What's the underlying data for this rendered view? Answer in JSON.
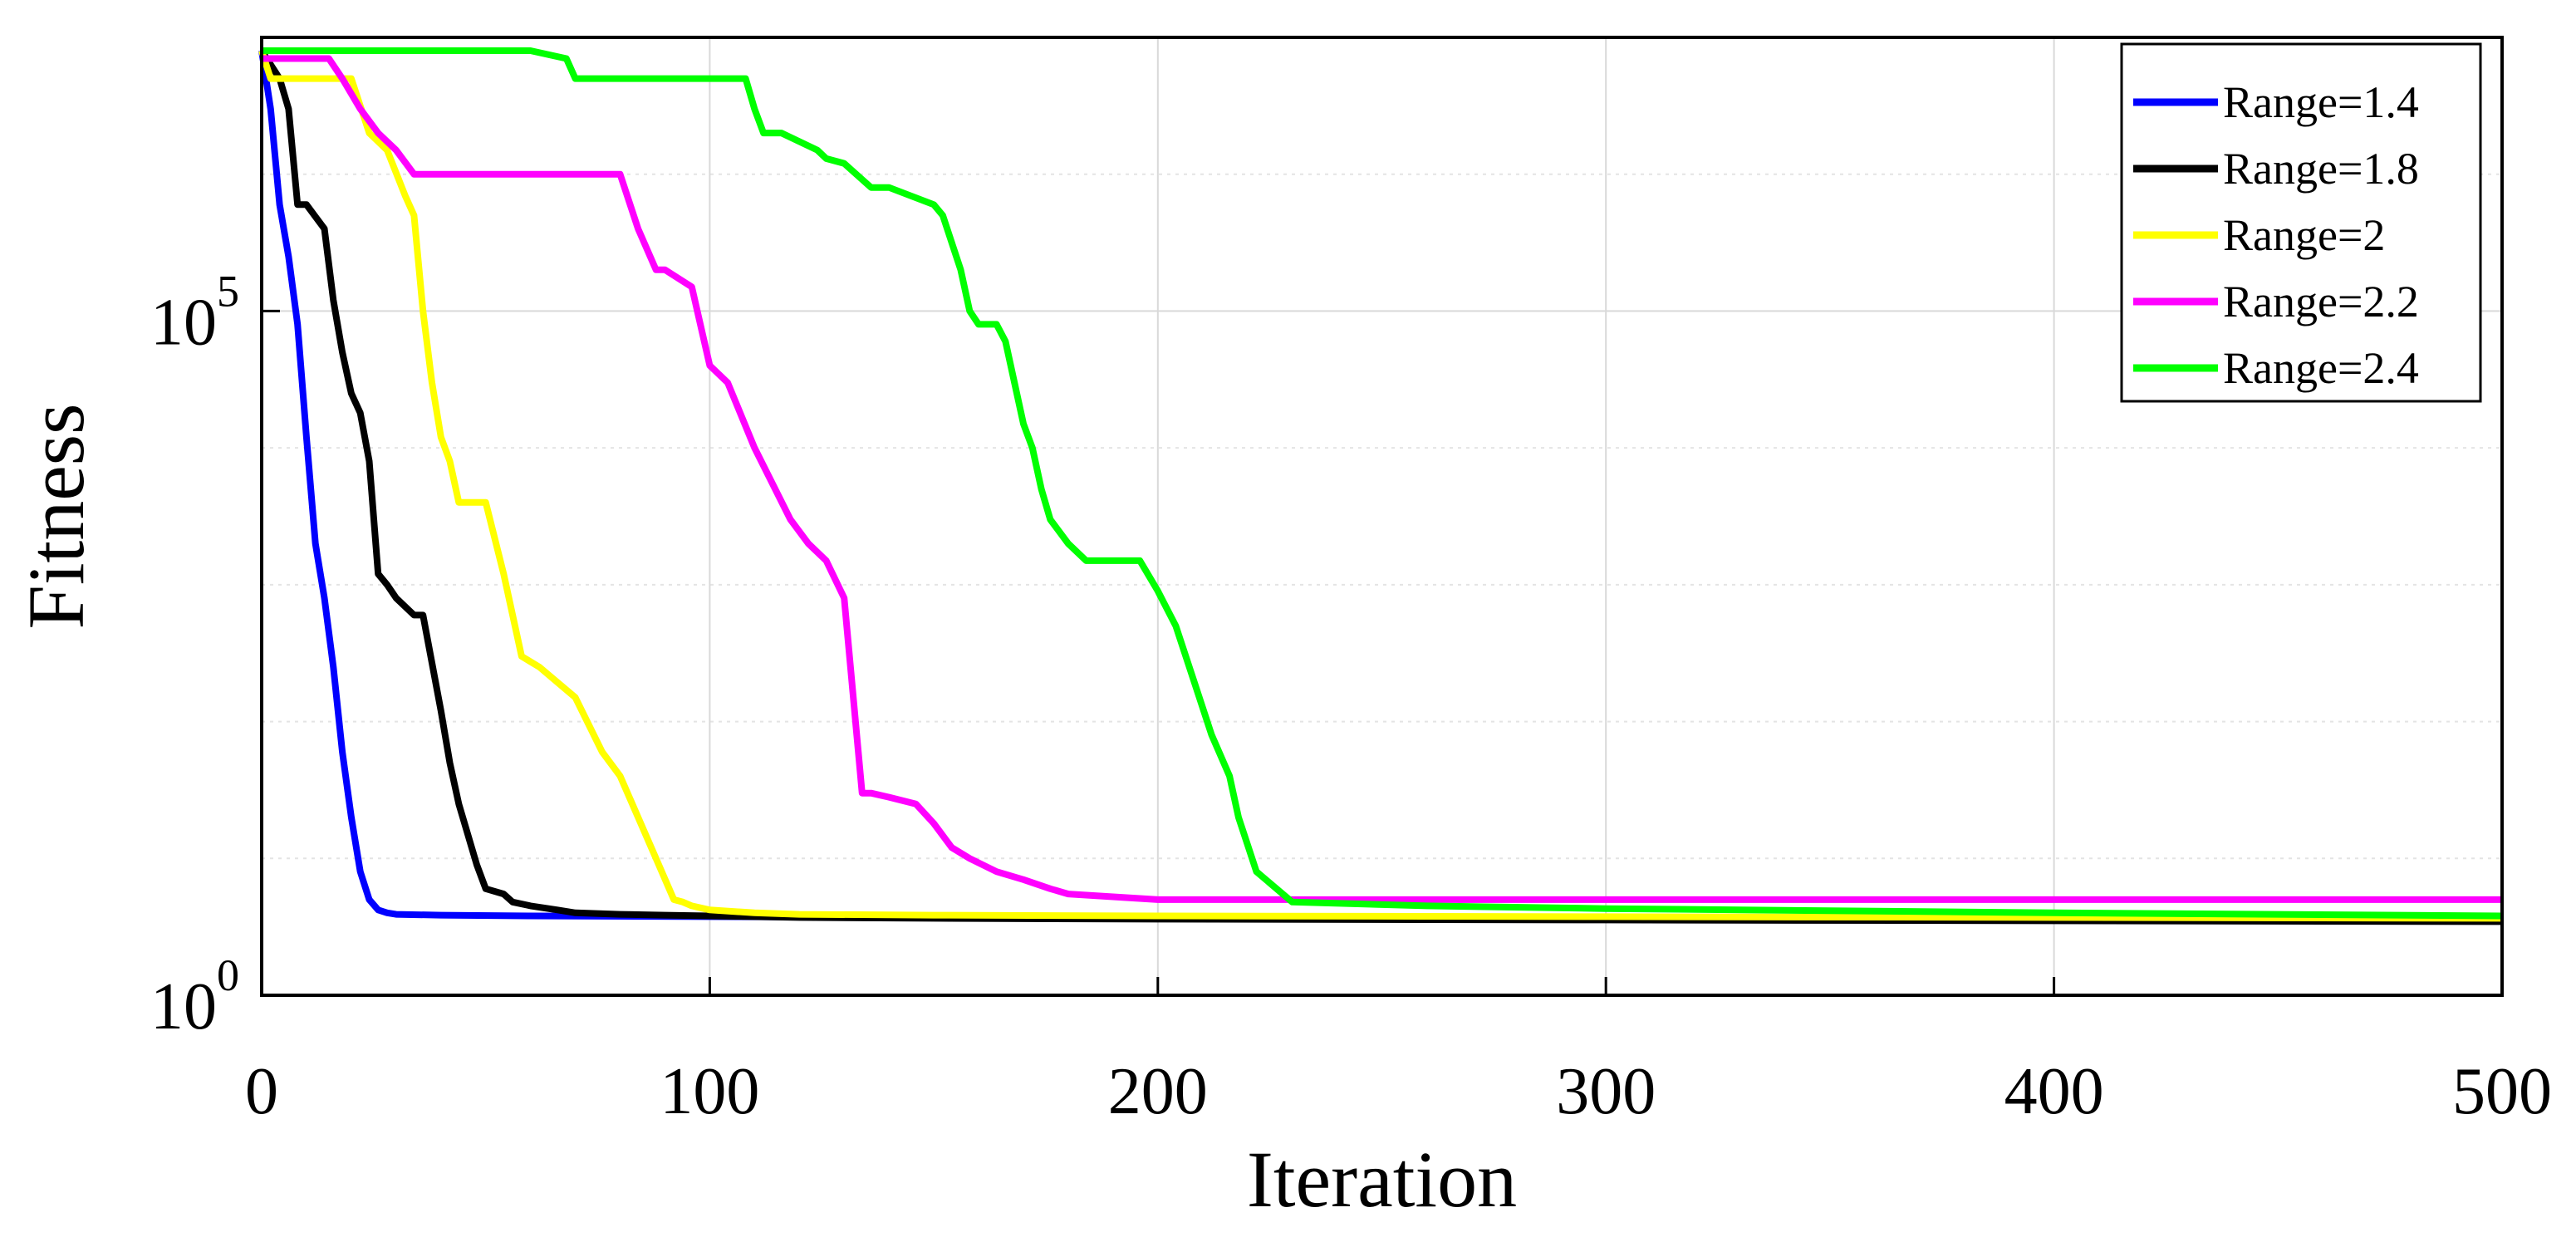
{
  "chart_data": {
    "type": "line",
    "title": "",
    "xlabel": "Iteration",
    "ylabel": "Fitness",
    "xlim": [
      0,
      500
    ],
    "ylim": [
      1,
      10000000
    ],
    "yscale": "log",
    "xticks": [
      0,
      100,
      200,
      300,
      400,
      500
    ],
    "xtick_labels": [
      "0",
      "100",
      "200",
      "300",
      "400",
      "500"
    ],
    "yticks": [
      1,
      100000
    ],
    "ytick_labels": [
      {
        "base": "10",
        "exp": "0"
      },
      {
        "base": "10",
        "exp": "5"
      }
    ],
    "grid": true,
    "legend_position": "top-right",
    "series": [
      {
        "name": "Range=1.4",
        "color": "#0000ff",
        "x": [
          0,
          2,
          4,
          6,
          8,
          10,
          12,
          14,
          16,
          18,
          20,
          22,
          24,
          26,
          28,
          30,
          40,
          60,
          100,
          150,
          200,
          300,
          400,
          500
        ],
        "y": [
          8000000,
          3000000,
          600000,
          250000,
          80000,
          12000,
          2000,
          800,
          250,
          60,
          20,
          8,
          5,
          4.2,
          4.0,
          3.9,
          3.85,
          3.8,
          3.75,
          3.7,
          3.65,
          3.6,
          3.55,
          3.5
        ]
      },
      {
        "name": "Range=1.8",
        "color": "#000000",
        "x": [
          0,
          4,
          6,
          8,
          10,
          14,
          16,
          18,
          20,
          22,
          24,
          26,
          28,
          30,
          34,
          36,
          40,
          42,
          44,
          46,
          48,
          50,
          54,
          56,
          60,
          66,
          70,
          80,
          90,
          100,
          110,
          120,
          150,
          200,
          300,
          400,
          500
        ],
        "y": [
          8000000,
          5000000,
          3000000,
          600000,
          600000,
          400000,
          120000,
          50000,
          25000,
          18000,
          8000,
          1200,
          1000,
          800,
          600,
          600,
          120,
          50,
          25,
          15,
          9,
          6,
          5.5,
          4.8,
          4.5,
          4.2,
          4.0,
          3.9,
          3.85,
          3.8,
          3.75,
          3.7,
          3.65,
          3.6,
          3.55,
          3.5,
          3.45
        ]
      },
      {
        "name": "Range=2",
        "color": "#ffff00",
        "x": [
          0,
          2,
          10,
          20,
          24,
          28,
          32,
          34,
          36,
          38,
          40,
          42,
          44,
          50,
          54,
          58,
          62,
          70,
          76,
          80,
          84,
          88,
          92,
          94,
          96,
          100,
          110,
          120,
          150,
          200,
          300,
          400,
          500
        ],
        "y": [
          8000000,
          5000000,
          5000000,
          5000000,
          2000000,
          1500000,
          700000,
          500000,
          100000,
          30000,
          12000,
          8000,
          4000,
          4000,
          1200,
          300,
          250,
          150,
          60,
          40,
          20,
          10,
          5,
          4.8,
          4.5,
          4.2,
          4.0,
          3.9,
          3.85,
          3.8,
          3.75,
          3.7,
          3.65
        ]
      },
      {
        "name": "Range=2.2",
        "color": "#ff00ff",
        "x": [
          0,
          15,
          18,
          22,
          26,
          30,
          34,
          80,
          84,
          88,
          90,
          96,
          100,
          104,
          110,
          118,
          122,
          126,
          130,
          134,
          136,
          140,
          146,
          150,
          154,
          158,
          164,
          170,
          176,
          180,
          200,
          300,
          400,
          500
        ],
        "y": [
          7000000,
          7000000,
          5000000,
          3000000,
          2000000,
          1500000,
          1000000,
          1000000,
          400000,
          200000,
          200000,
          150000,
          40000,
          30000,
          10000,
          3000,
          2000,
          1500,
          800,
          30,
          30,
          28,
          25,
          18,
          12,
          10,
          8,
          7,
          6,
          5.5,
          5,
          5,
          5,
          5
        ]
      },
      {
        "name": "Range=2.4",
        "color": "#00ff00",
        "x": [
          0,
          60,
          68,
          70,
          108,
          110,
          112,
          116,
          124,
          126,
          130,
          136,
          140,
          150,
          152,
          156,
          158,
          160,
          164,
          166,
          170,
          172,
          174,
          176,
          180,
          184,
          190,
          196,
          200,
          204,
          208,
          212,
          216,
          218,
          222,
          230,
          260,
          300,
          400,
          500
        ],
        "y": [
          8000000,
          8000000,
          7000000,
          5000000,
          5000000,
          3000000,
          2000000,
          2000000,
          1500000,
          1300000,
          1200000,
          800000,
          800000,
          600000,
          500000,
          200000,
          100000,
          80000,
          80000,
          60000,
          15000,
          10000,
          5000,
          3000,
          2000,
          1500,
          1500,
          1500,
          900,
          500,
          200,
          80,
          40,
          20,
          8,
          4.8,
          4.5,
          4.3,
          4.0,
          3.8
        ]
      }
    ]
  }
}
